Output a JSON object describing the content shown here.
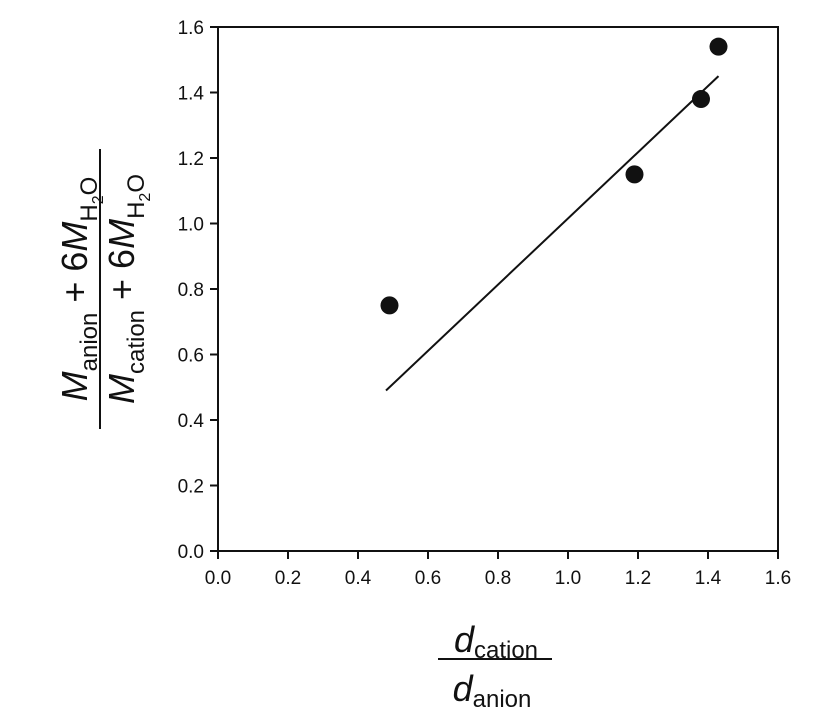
{
  "chart_data": {
    "type": "scatter",
    "title": "",
    "xlim": [
      0.0,
      1.6
    ],
    "ylim": [
      0.0,
      1.6
    ],
    "x_ticks": [
      "0.0",
      "0.2",
      "0.4",
      "0.6",
      "0.8",
      "1.0",
      "1.2",
      "1.4",
      "1.6"
    ],
    "y_ticks": [
      "0.0",
      "0.2",
      "0.4",
      "0.6",
      "0.8",
      "1.0",
      "1.2",
      "1.4",
      "1.6"
    ],
    "xlabel": {
      "numerator": {
        "symbol": "d",
        "subscript": "cation"
      },
      "denominator": {
        "symbol": "d",
        "subscript": "anion"
      }
    },
    "ylabel": {
      "numerator": {
        "symbol": "M",
        "subscript": "anion",
        "operator": "+",
        "coefficient": "6",
        "water_symbol": "M",
        "water_subscript": "H",
        "water_subsub": "2",
        "water_tail": "O"
      },
      "denominator": {
        "symbol": "M",
        "subscript": "cation",
        "operator": "+",
        "coefficient": "6",
        "water_symbol": "M",
        "water_subscript": "H",
        "water_subsub": "2",
        "water_tail": "O"
      }
    },
    "points": [
      {
        "x": 0.49,
        "y": 0.75
      },
      {
        "x": 1.19,
        "y": 1.15
      },
      {
        "x": 1.38,
        "y": 1.38
      },
      {
        "x": 1.43,
        "y": 1.54
      }
    ],
    "fit_line": {
      "x": [
        0.48,
        1.43
      ],
      "y": [
        0.49,
        1.45
      ]
    },
    "grid": false,
    "marker_color": "#111111",
    "line_color": "#111111"
  }
}
